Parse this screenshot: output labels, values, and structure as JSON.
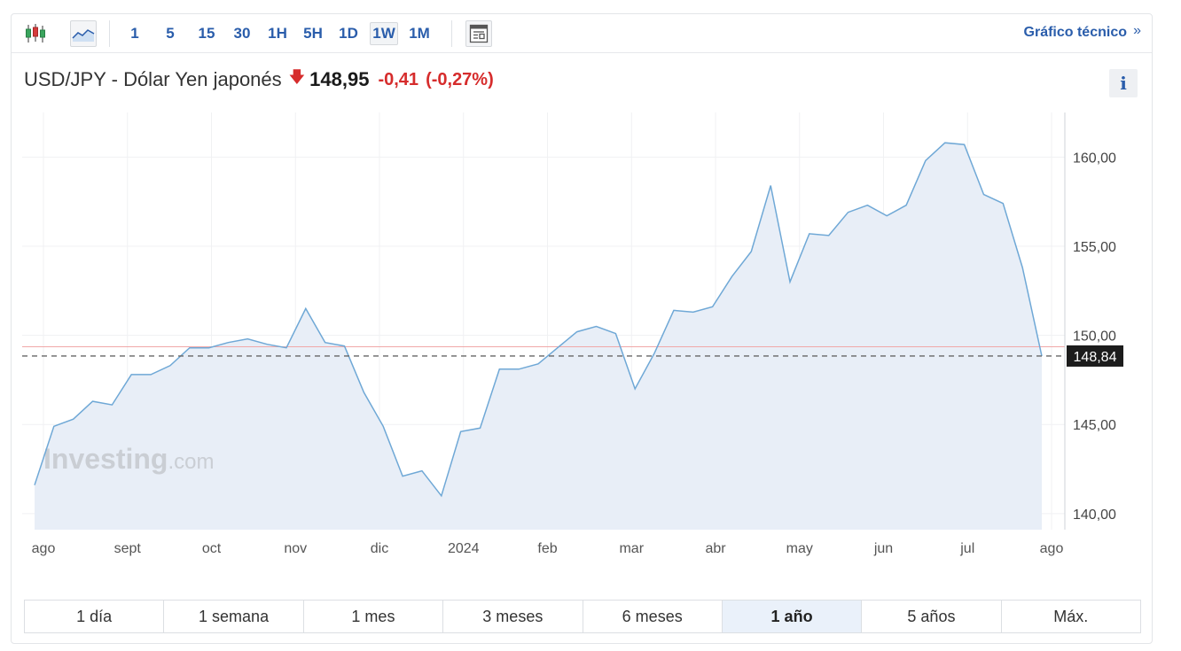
{
  "toolbar": {
    "candles_icon": "candlestick-icon",
    "area_icon": "area-chart-icon",
    "layout_icon": "layout-icon",
    "intervals": [
      "1",
      "5",
      "15",
      "30",
      "1H",
      "5H",
      "1D",
      "1W",
      "1M"
    ],
    "active_interval": "1W",
    "technical_link": "Gráfico técnico",
    "technical_chevron": "»"
  },
  "header": {
    "pair": "USD/JPY - Dólar Yen japonés",
    "price": "148,95",
    "change": "-0,41",
    "change_pct": "(-0,27%)",
    "info": "i"
  },
  "colors": {
    "line": "#6fa8d6",
    "area": "#e8eef7",
    "reference": "#f0a8a8",
    "negative": "#d62c2c",
    "link": "#2a5dab"
  },
  "chart_data": {
    "type": "area",
    "x_tick_labels": [
      "ago",
      "sept",
      "oct",
      "nov",
      "dic",
      "2024",
      "feb",
      "mar",
      "abr",
      "may",
      "jun",
      "jul",
      "ago"
    ],
    "y_tick_labels": [
      "160,00",
      "155,00",
      "150,00",
      "145,00",
      "140,00"
    ],
    "ylim": [
      139.1,
      162.5
    ],
    "yticks": [
      160,
      155,
      150,
      145,
      140
    ],
    "values": [
      141.6,
      144.9,
      145.3,
      146.3,
      146.1,
      147.8,
      147.8,
      148.3,
      149.3,
      149.3,
      149.6,
      149.8,
      149.5,
      149.3,
      151.5,
      149.6,
      149.4,
      146.8,
      144.9,
      142.1,
      142.4,
      141.0,
      144.6,
      144.8,
      148.1,
      148.1,
      148.4,
      149.3,
      150.2,
      150.5,
      150.1,
      147.0,
      149.0,
      151.4,
      151.3,
      151.6,
      153.3,
      154.7,
      158.4,
      153.0,
      155.7,
      155.6,
      156.9,
      157.3,
      156.7,
      157.3,
      159.8,
      160.8,
      160.7,
      157.9,
      157.4,
      153.8,
      148.84
    ],
    "last_value_label": "148,84",
    "previous_close": 149.36,
    "watermark": "Investing",
    "watermark_suffix": ".com"
  },
  "ranges": [
    "1 día",
    "1 semana",
    "1 mes",
    "3 meses",
    "6 meses",
    "1 año",
    "5 años",
    "Máx."
  ],
  "active_range": "1 año"
}
